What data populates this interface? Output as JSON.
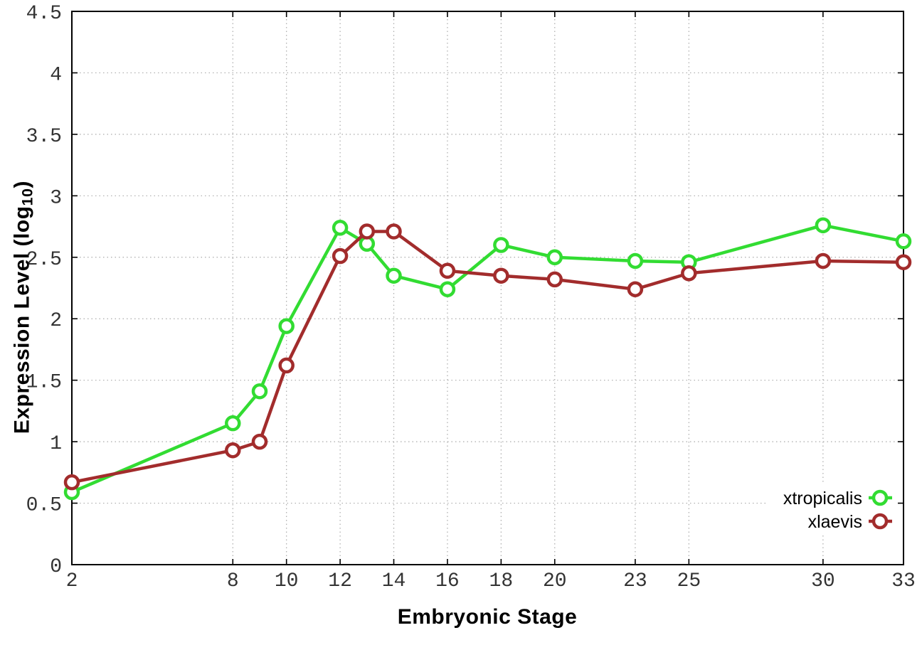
{
  "figure": {
    "background": "#ffffff",
    "xlabel": "Embryonic Stage",
    "ylabel_prefix": "Expression Level (log",
    "ylabel_sub": "10",
    "ylabel_suffix": ")"
  },
  "chart_data": {
    "type": "line",
    "title": "",
    "xlabel": "Embryonic Stage",
    "ylabel": "Expression Level (log10)",
    "xlim": [
      2,
      33
    ],
    "ylim": [
      0,
      4.5
    ],
    "x_ticks": [
      2,
      8,
      10,
      12,
      14,
      16,
      18,
      20,
      23,
      25,
      30,
      33
    ],
    "y_ticks": [
      0,
      0.5,
      1,
      1.5,
      2,
      2.5,
      3,
      3.5,
      4,
      4.5
    ],
    "grid": true,
    "grid_color": "#aaaaaa",
    "axis_color": "#000000",
    "tick_label_color": "#333333",
    "marker": "open-circle",
    "legend_position": "bottom-right-inside",
    "x": [
      2,
      8,
      9,
      10,
      12,
      13,
      14,
      16,
      18,
      20,
      23,
      25,
      30,
      33
    ],
    "series": [
      {
        "name": "xtropicalis",
        "color": "#32dc32",
        "values": [
          0.59,
          1.15,
          1.41,
          1.94,
          2.74,
          2.61,
          2.35,
          2.24,
          2.6,
          2.5,
          2.47,
          2.46,
          2.76,
          2.63
        ]
      },
      {
        "name": "xlaevis",
        "color": "#a22c2c",
        "values": [
          0.67,
          0.93,
          1.0,
          1.62,
          2.51,
          2.71,
          2.71,
          2.39,
          2.35,
          2.32,
          2.24,
          2.37,
          2.47,
          2.46
        ]
      }
    ]
  }
}
